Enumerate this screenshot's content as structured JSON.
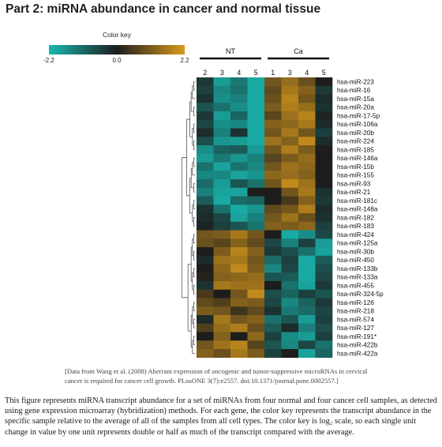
{
  "page_title": "Part 2: miRNA abundance in cancer and normal tissue",
  "chart_data": {
    "type": "heatmap",
    "color_key": {
      "title": "Color key",
      "ticks": [
        "-2.2",
        "0.0",
        "2.2"
      ],
      "range": [
        -2.2,
        2.2
      ],
      "colors": {
        "low": "#18b8b0",
        "mid": "#1d1d1d",
        "high": "#d99a1c"
      }
    },
    "groups": [
      {
        "label": "NT",
        "columns": [
          "2",
          "3",
          "4",
          "5"
        ]
      },
      {
        "label": "Ca",
        "columns": [
          "1",
          "3",
          "4",
          "5"
        ]
      }
    ],
    "row_labels": [
      "hsa-miR-223",
      "hsa-miR-16",
      "hsa-miR-15a",
      "hsa-miR-20a",
      "hsa-miR-17-5p",
      "hsa-miR-106a",
      "hsa-miR-20b",
      "hsa-miR-224",
      "hsa-miR-185",
      "hsa-miR-146a",
      "hsa-miR-15b",
      "hsa-miR-155",
      "hsa-miR-93",
      "hsa-miR-21",
      "hsa-miR-181c",
      "hsa-miR-148a",
      "hsa-miR-182",
      "hsa-miR-183",
      "hsa-miR-424",
      "hsa-miR-125a",
      "hsa-miR-30b",
      "hsa-miR-450",
      "hsa-miR-133b",
      "hsa-miR-133a",
      "hsa-miR-455",
      "hsa-miR-324-5p",
      "hsa-miR-126",
      "hsa-miR-218",
      "hsa-miR-574",
      "hsa-miR-127",
      "hsa-miR-191*",
      "hsa-miR-422b",
      "hsa-miR-422a"
    ],
    "values": [
      [
        -0.4,
        -1.8,
        -1.3,
        -2.0,
        1.0,
        1.4,
        0.9,
        0.0
      ],
      [
        -0.5,
        -1.5,
        -1.2,
        -2.0,
        0.8,
        1.6,
        1.2,
        -0.4
      ],
      [
        -0.3,
        -1.6,
        -1.4,
        -2.0,
        0.9,
        1.8,
        1.0,
        -0.2
      ],
      [
        -0.8,
        -1.2,
        -1.6,
        -2.0,
        1.1,
        1.7,
        1.4,
        -0.3
      ],
      [
        -0.4,
        -1.8,
        -1.0,
        -2.0,
        0.7,
        1.5,
        1.8,
        -0.1
      ],
      [
        -0.6,
        -1.6,
        -1.5,
        -2.0,
        1.2,
        1.3,
        1.6,
        -0.2
      ],
      [
        -0.2,
        -1.4,
        -0.3,
        -2.0,
        1.0,
        1.6,
        1.0,
        -0.5
      ],
      [
        -0.7,
        -1.7,
        -1.8,
        -2.0,
        1.5,
        1.2,
        1.9,
        -0.2
      ],
      [
        -1.6,
        -1.0,
        -0.9,
        -1.8,
        1.0,
        1.7,
        1.1,
        0.0
      ],
      [
        -1.8,
        -1.3,
        -1.7,
        -1.4,
        0.7,
        1.1,
        1.4,
        0.0
      ],
      [
        -1.2,
        -1.9,
        -1.2,
        -1.5,
        1.0,
        1.5,
        1.3,
        0.0
      ],
      [
        -1.5,
        -1.5,
        -1.9,
        -1.7,
        1.3,
        1.4,
        1.2,
        0.0
      ],
      [
        -1.1,
        -1.8,
        -0.8,
        -1.2,
        1.0,
        1.9,
        1.5,
        0.0
      ],
      [
        -1.4,
        -1.9,
        -1.9,
        0.0,
        0.0,
        1.0,
        1.6,
        -0.3
      ],
      [
        -0.9,
        -2.0,
        -1.1,
        -1.0,
        0.0,
        0.5,
        1.2,
        -0.4
      ],
      [
        -0.3,
        -1.2,
        -2.0,
        -1.7,
        0.8,
        1.0,
        1.7,
        -0.2
      ],
      [
        -0.2,
        -0.6,
        -1.9,
        -1.4,
        1.0,
        1.5,
        0.9,
        -0.3
      ],
      [
        -0.1,
        -0.5,
        -0.8,
        -1.2,
        1.2,
        1.1,
        1.3,
        -0.5
      ],
      [
        1.0,
        1.1,
        1.6,
        1.0,
        0.0,
        -2.0,
        -1.6,
        -0.6
      ],
      [
        0.9,
        0.7,
        1.2,
        0.8,
        -0.6,
        -1.4,
        -0.5,
        -1.8
      ],
      [
        0.0,
        1.1,
        1.8,
        1.2,
        -0.4,
        -0.7,
        -1.2,
        -1.9
      ],
      [
        -0.2,
        1.5,
        1.6,
        1.0,
        -1.1,
        -0.5,
        -2.0,
        -0.9
      ],
      [
        0.0,
        1.3,
        1.9,
        1.1,
        -1.5,
        -0.6,
        -2.0,
        -0.7
      ],
      [
        0.1,
        1.2,
        1.3,
        1.4,
        -0.8,
        -0.9,
        -2.0,
        -0.6
      ],
      [
        -0.3,
        1.6,
        1.5,
        1.5,
        0.0,
        -1.2,
        -1.9,
        -0.4
      ],
      [
        0.5,
        0.0,
        1.0,
        1.9,
        -0.7,
        -1.0,
        -0.5,
        -0.8
      ],
      [
        0.8,
        0.6,
        1.2,
        1.1,
        -0.6,
        -1.5,
        -1.0,
        -0.4
      ],
      [
        1.1,
        1.0,
        0.4,
        0.8,
        -0.3,
        -1.3,
        -1.1,
        -0.6
      ],
      [
        -0.2,
        1.6,
        1.0,
        1.2,
        -1.2,
        -0.8,
        -1.8,
        -0.5
      ],
      [
        0.6,
        1.4,
        1.7,
        0.9,
        -0.9,
        -0.2,
        -1.4,
        -0.7
      ],
      [
        0.0,
        1.2,
        0.0,
        1.3,
        -0.5,
        -1.6,
        -1.8,
        -0.5
      ],
      [
        1.0,
        1.5,
        1.8,
        0.7,
        -0.8,
        -1.5,
        -0.6,
        -1.2
      ],
      [
        1.2,
        0.9,
        1.6,
        1.1,
        -0.5,
        0.0,
        -1.9,
        -1.0
      ]
    ]
  },
  "caption": "[Data from Wang et al. (2008) Aberrant expression of oncogenic and tumor-suppressive microRNAs in cervical cancer is required for cancer cell growth. PLosONE 3(7):e2557. doi:10.1371/journal.pone.0002557.]",
  "description": "This figure represents miRNA transcript abundance for a set of miRNAs from four normal and four cancer cell samples, as detected using gene expression microarray (hybridization) methods. For each gene, the color key represents the transcript abundance in the specific sample relative to the average of all of the samples from all cell types. The color key is log₂ scale, so each single unit change in value by one unit represents double or half as much of the transcript compared with the average."
}
